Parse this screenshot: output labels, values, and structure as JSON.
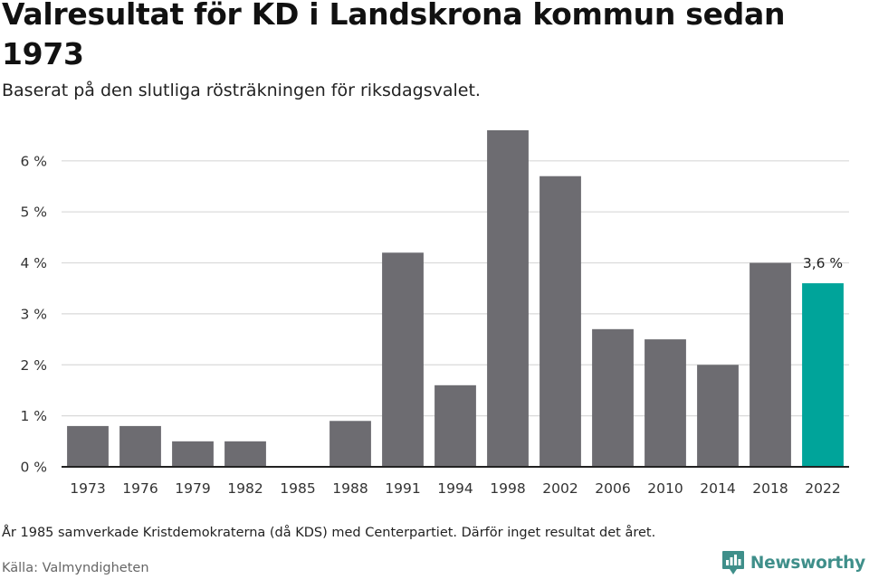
{
  "header": {
    "title": "Valresultat för KD i Landskrona kommun sedan 1973",
    "subtitle": "Baserat på den slutliga rösträkningen för riksdagsvalet."
  },
  "chart_data": {
    "type": "bar",
    "categories": [
      "1973",
      "1976",
      "1979",
      "1982",
      "1985",
      "1988",
      "1991",
      "1994",
      "1998",
      "2002",
      "2006",
      "2010",
      "2014",
      "2018",
      "2022"
    ],
    "values": [
      0.8,
      0.8,
      0.5,
      0.5,
      null,
      0.9,
      4.2,
      1.6,
      6.6,
      5.7,
      2.7,
      2.5,
      2.0,
      4.0,
      3.6
    ],
    "ylim": [
      0,
      6.6
    ],
    "yticks": [
      0,
      1,
      2,
      3,
      4,
      5,
      6
    ],
    "ytick_labels": [
      "0 %",
      "1 %",
      "2 %",
      "3 %",
      "4 %",
      "5 %",
      "6 %"
    ],
    "grid": true,
    "colors": {
      "bar": "#6d6c71",
      "highlight": "#00a49a",
      "grid": "#d9d9d9",
      "axis": "#222222"
    },
    "highlight_index": 14,
    "data_labels": [
      {
        "index": 14,
        "text": "3,6 %"
      }
    ]
  },
  "footer": {
    "note": "År 1985 samverkade Kristdemokraterna (då KDS) med Centerpartiet. Därför inget resultat det året.",
    "source": "Källa: Valmyndigheten"
  },
  "brand": {
    "name": "Newsworthy",
    "icon": "newsworthy-logo-icon",
    "color": "#3f8f8a"
  }
}
